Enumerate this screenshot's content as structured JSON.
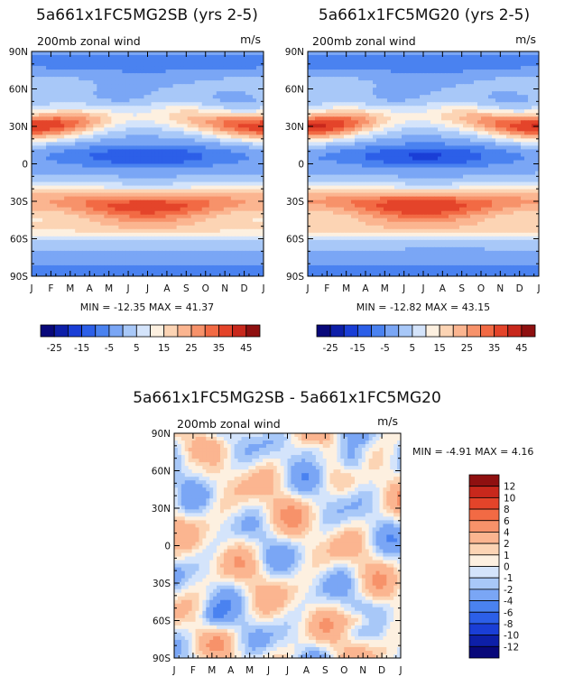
{
  "chart_data": [
    {
      "type": "heatmap",
      "title": "5a661x1FC5MG2SB (yrs 2-5)",
      "subtitle": "200mb zonal wind",
      "units": "m/s",
      "x_ticks": [
        "J",
        "F",
        "M",
        "A",
        "M",
        "J",
        "J",
        "A",
        "S",
        "O",
        "N",
        "D",
        "J"
      ],
      "y_ticks": [
        "90N",
        "60N",
        "30N",
        "0",
        "30S",
        "60S",
        "90S"
      ],
      "stats": "MIN = -12.35 MAX = 41.37",
      "min": -12.35,
      "max": 41.37,
      "colorbar_labels": [
        "-25",
        "-15",
        "-5",
        "5",
        "15",
        "25",
        "35",
        "45"
      ],
      "colorbar_levels": [
        -30,
        -25,
        -20,
        -15,
        -10,
        -5,
        0,
        5,
        10,
        15,
        20,
        25,
        30,
        35,
        40,
        45,
        50
      ],
      "colors": [
        "#08087a",
        "#0d1fa8",
        "#1a3ed6",
        "#2c5fe8",
        "#4a82f0",
        "#7aa6f5",
        "#a8c8f8",
        "#d4e4fb",
        "#fdf0e0",
        "#fcd4b4",
        "#fbb590",
        "#f7926a",
        "#f26a44",
        "#e4442a",
        "#c8281c",
        "#8f1010"
      ],
      "field": "jet30N-1, jetS-1, easterly-0"
    },
    {
      "type": "heatmap",
      "title": "5a661x1FC5MG20 (yrs 2-5)",
      "subtitle": "200mb zonal wind",
      "units": "m/s",
      "x_ticks": [
        "J",
        "F",
        "M",
        "A",
        "M",
        "J",
        "J",
        "A",
        "S",
        "O",
        "N",
        "D",
        "J"
      ],
      "y_ticks": [
        "90N",
        "60N",
        "30N",
        "0",
        "30S",
        "60S",
        "90S"
      ],
      "stats": "MIN = -12.82 MAX = 43.15",
      "min": -12.82,
      "max": 43.15,
      "colorbar_labels": [
        "-25",
        "-15",
        "-5",
        "5",
        "15",
        "25",
        "35",
        "45"
      ],
      "colorbar_levels": [
        -30,
        -25,
        -20,
        -15,
        -10,
        -5,
        0,
        5,
        10,
        15,
        20,
        25,
        30,
        35,
        40,
        45,
        50
      ],
      "colors": [
        "#08087a",
        "#0d1fa8",
        "#1a3ed6",
        "#2c5fe8",
        "#4a82f0",
        "#7aa6f5",
        "#a8c8f8",
        "#d4e4fb",
        "#fdf0e0",
        "#fcd4b4",
        "#fbb590",
        "#f7926a",
        "#f26a44",
        "#e4442a",
        "#c8281c",
        "#8f1010"
      ]
    },
    {
      "type": "heatmap",
      "title": "5a661x1FC5MG2SB - 5a661x1FC5MG20",
      "subtitle": "200mb zonal wind",
      "units": "m/s",
      "x_ticks": [
        "J",
        "F",
        "M",
        "A",
        "M",
        "J",
        "J",
        "A",
        "S",
        "O",
        "N",
        "D",
        "J"
      ],
      "y_ticks": [
        "90N",
        "60N",
        "30N",
        "0",
        "30S",
        "60S",
        "90S"
      ],
      "stats": "MIN = -4.91 MAX = 4.16",
      "min": -4.91,
      "max": 4.16,
      "colorbar_labels": [
        "12",
        "10",
        "8",
        "6",
        "4",
        "2",
        "1",
        "0",
        "-1",
        "-2",
        "-4",
        "-6",
        "-8",
        "-10",
        "-12"
      ],
      "colorbar_levels": [
        -14,
        -12,
        -10,
        -8,
        -6,
        -4,
        -2,
        -1,
        0,
        1,
        2,
        4,
        6,
        8,
        10,
        12,
        14
      ],
      "colors": [
        "#08087a",
        "#0d1fa8",
        "#1a3ed6",
        "#2c5fe8",
        "#4a82f0",
        "#7aa6f5",
        "#a8c8f8",
        "#d4e4fb",
        "#fdf0e0",
        "#fcd4b4",
        "#fbb590",
        "#f7926a",
        "#f26a44",
        "#e4442a",
        "#c8281c",
        "#8f1010"
      ]
    }
  ]
}
